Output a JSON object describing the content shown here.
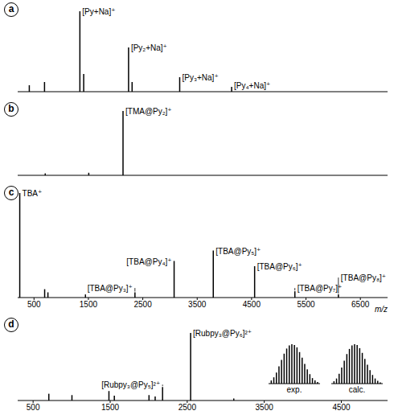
{
  "chart_data": [
    {
      "type": "bar",
      "panel": "a",
      "x": [
        420,
        700,
        1350,
        1420,
        2245,
        2310,
        3185,
        4140
      ],
      "values": [
        8,
        12,
        100,
        22,
        55,
        12,
        18,
        6
      ],
      "labels": [
        null,
        null,
        "[Py+Na]⁺",
        null,
        "[Py₂+Na]⁺",
        null,
        "[Py₃+Na]⁺",
        "[Py₄+Na]⁺"
      ],
      "xlim": [
        200,
        7000
      ],
      "ylim": [
        0,
        100
      ],
      "tick_labels": false,
      "color": "#000000"
    },
    {
      "type": "bar",
      "panel": "b",
      "x": [
        700,
        1500,
        2130
      ],
      "values": [
        3,
        4,
        100
      ],
      "labels": [
        null,
        null,
        "[TMA@Py₂]⁺"
      ],
      "xlim": [
        200,
        7000
      ],
      "ylim": [
        0,
        100
      ],
      "tick_labels": false,
      "color": "#000000"
    },
    {
      "type": "bar",
      "panel": "c",
      "x": [
        242,
        700,
        760,
        1450,
        2360,
        3080,
        3800,
        4560,
        5300,
        6100
      ],
      "values": [
        100,
        8,
        5,
        3,
        5,
        35,
        45,
        30,
        6,
        3
      ],
      "labels": [
        "TBA⁺",
        null,
        null,
        null,
        "[TBA@Py₃]⁺",
        "[TBA@Py₄]⁺",
        "[TBA@Py₅]⁺",
        "[TBA@Py₆]⁺",
        "[TBA@Py₇]⁺",
        "[TBA@Py₈]⁺"
      ],
      "x_label": "m/z",
      "xlim": [
        200,
        7000
      ],
      "xticks": [
        500,
        1500,
        2500,
        3500,
        4500,
        5500,
        6500
      ],
      "ylim": [
        0,
        100
      ],
      "tick_labels": "x",
      "color": "#000000"
    },
    {
      "type": "bar",
      "panel": "d",
      "x": [
        700,
        1000,
        1480,
        1550,
        2000,
        2080,
        2176,
        2540,
        3100
      ],
      "values": [
        10,
        8,
        14,
        7,
        8,
        6,
        20,
        100,
        3
      ],
      "labels": [
        null,
        null,
        null,
        null,
        null,
        null,
        "[Rubpy₃@Py₅]²⁺",
        "[Rubpy₃@Py₆]²⁺",
        null
      ],
      "xlim": [
        300,
        5100
      ],
      "xticks": [
        500,
        1500,
        2500,
        3500,
        4500
      ],
      "ylim": [
        0,
        100
      ],
      "tick_labels": "x",
      "color": "#000000",
      "insets": [
        {
          "type": "bar",
          "title": "exp.",
          "x": [
            2535.5,
            2536,
            2536.5,
            2537,
            2537.5,
            2538,
            2538.5,
            2539,
            2539.5,
            2540,
            2540.5,
            2541,
            2541.5,
            2542,
            2542.5,
            2543,
            2543.5,
            2544,
            2544.5
          ],
          "values": [
            8,
            16,
            28,
            44,
            60,
            76,
            89,
            97,
            100,
            98,
            92,
            80,
            66,
            50,
            36,
            24,
            14,
            8,
            4
          ],
          "xlim": [
            2535,
            2545
          ],
          "ylim": [
            0,
            100
          ],
          "tick_labels": false,
          "color": "#000000"
        },
        {
          "type": "bar",
          "title": "calc.",
          "x": [
            2535.5,
            2536,
            2536.5,
            2537,
            2537.5,
            2538,
            2538.5,
            2539,
            2539.5,
            2540,
            2540.5,
            2541,
            2541.5,
            2542,
            2542.5,
            2543,
            2543.5,
            2544,
            2544.5
          ],
          "values": [
            6,
            13,
            25,
            41,
            58,
            75,
            88,
            97,
            100,
            98,
            90,
            78,
            63,
            48,
            34,
            22,
            13,
            7,
            3
          ],
          "xlim": [
            2535,
            2545
          ],
          "ylim": [
            0,
            100
          ],
          "tick_labels": false,
          "color": "#000000"
        }
      ]
    }
  ]
}
